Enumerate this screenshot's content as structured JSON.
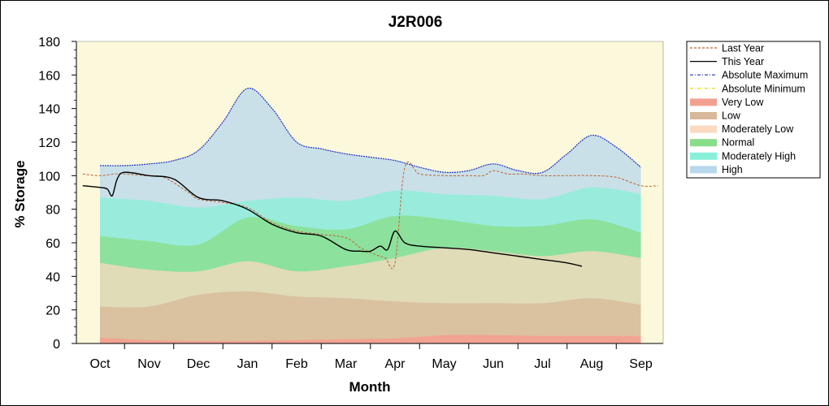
{
  "chart_data": {
    "type": "area",
    "title": "J2R006",
    "xlabel": "Month",
    "ylabel": "% Storage",
    "ylim": [
      0,
      180
    ],
    "yticks": [
      0,
      20,
      40,
      60,
      80,
      100,
      120,
      140,
      160,
      180
    ],
    "categories": [
      "Oct",
      "Nov",
      "Dec",
      "Jan",
      "Feb",
      "Mar",
      "Apr",
      "May",
      "Jun",
      "Jul",
      "Aug",
      "Sep"
    ],
    "grid": false,
    "legend_position": "right",
    "band_boundaries": [
      {
        "name": "Very Low upper",
        "points": [
          [
            0.0,
            3.5
          ],
          [
            1.0,
            2
          ],
          [
            2.0,
            1.5
          ],
          [
            3.0,
            1.5
          ],
          [
            4.0,
            2
          ],
          [
            5.0,
            2.5
          ],
          [
            6.0,
            3
          ],
          [
            7.0,
            5
          ],
          [
            8.0,
            5
          ],
          [
            9.0,
            4.5
          ],
          [
            10.0,
            4.5
          ],
          [
            11.0,
            4.5
          ]
        ]
      },
      {
        "name": "Low upper",
        "points": [
          [
            0.0,
            22
          ],
          [
            1.0,
            22
          ],
          [
            2.0,
            29
          ],
          [
            3.0,
            31
          ],
          [
            4.0,
            28
          ],
          [
            5.0,
            27
          ],
          [
            6.0,
            25
          ],
          [
            7.0,
            24
          ],
          [
            8.0,
            24
          ],
          [
            9.0,
            24
          ],
          [
            10.0,
            27
          ],
          [
            11.0,
            23
          ]
        ]
      },
      {
        "name": "Moderately Low upper",
        "points": [
          [
            0.0,
            48
          ],
          [
            1.0,
            44
          ],
          [
            2.0,
            43
          ],
          [
            3.0,
            49
          ],
          [
            4.0,
            43
          ],
          [
            5.0,
            46
          ],
          [
            6.0,
            51
          ],
          [
            7.0,
            57
          ],
          [
            8.0,
            55
          ],
          [
            9.0,
            52
          ],
          [
            10.0,
            55
          ],
          [
            11.0,
            51
          ]
        ]
      },
      {
        "name": "Normal upper",
        "points": [
          [
            0.0,
            64
          ],
          [
            1.0,
            61
          ],
          [
            2.0,
            59
          ],
          [
            3.0,
            75
          ],
          [
            4.0,
            70
          ],
          [
            5.0,
            68
          ],
          [
            6.0,
            76
          ],
          [
            7.0,
            74
          ],
          [
            8.0,
            70
          ],
          [
            9.0,
            70
          ],
          [
            10.0,
            74
          ],
          [
            11.0,
            66
          ]
        ]
      },
      {
        "name": "Moderately High upper",
        "points": [
          [
            0.0,
            87
          ],
          [
            1.0,
            85
          ],
          [
            2.0,
            81
          ],
          [
            3.0,
            85
          ],
          [
            4.0,
            87
          ],
          [
            5.0,
            85
          ],
          [
            6.0,
            91
          ],
          [
            7.0,
            89
          ],
          [
            8.0,
            88
          ],
          [
            9.0,
            86
          ],
          [
            10.0,
            93
          ],
          [
            11.0,
            89
          ]
        ]
      },
      {
        "name": "Absolute Maximum",
        "points": [
          [
            0.0,
            106
          ],
          [
            0.5,
            106
          ],
          [
            1.0,
            107
          ],
          [
            1.5,
            109
          ],
          [
            2.0,
            115
          ],
          [
            2.5,
            132
          ],
          [
            3.0,
            152
          ],
          [
            3.5,
            140
          ],
          [
            4.0,
            120
          ],
          [
            4.5,
            116
          ],
          [
            5.0,
            113
          ],
          [
            5.5,
            111
          ],
          [
            6.0,
            109
          ],
          [
            6.5,
            105
          ],
          [
            7.0,
            102
          ],
          [
            7.5,
            103
          ],
          [
            8.0,
            107
          ],
          [
            8.5,
            103
          ],
          [
            9.0,
            102
          ],
          [
            9.5,
            113
          ],
          [
            10.0,
            124
          ],
          [
            10.5,
            117
          ],
          [
            11.0,
            105
          ]
        ]
      }
    ],
    "series": [
      {
        "name": "Last Year",
        "x": [
          -0.35,
          0.0,
          0.3,
          0.5,
          0.9,
          1.3,
          1.8,
          2.0,
          2.5,
          3.0,
          3.5,
          4.0,
          4.5,
          5.0,
          5.3,
          5.6,
          5.8,
          6.0,
          6.2,
          6.5,
          7.0,
          7.5,
          7.8,
          8.0,
          8.3,
          8.6,
          9.0,
          9.5,
          10.0,
          10.5,
          11.0,
          11.35
        ],
        "y": [
          101,
          100,
          101,
          101,
          100,
          99,
          90,
          86,
          84,
          81,
          72,
          67,
          65,
          63,
          57,
          53,
          51,
          48,
          105,
          101,
          100,
          100,
          100,
          103,
          101,
          101,
          100,
          100,
          100,
          99,
          94,
          94
        ]
      },
      {
        "name": "This Year",
        "x": [
          -0.35,
          0.0,
          0.15,
          0.25,
          0.35,
          0.5,
          1.0,
          1.5,
          2.0,
          2.5,
          3.0,
          3.5,
          4.0,
          4.5,
          5.0,
          5.3,
          5.5,
          5.7,
          5.85,
          6.0,
          6.2,
          6.5,
          7.0,
          7.5,
          8.0,
          8.5,
          9.0,
          9.5,
          9.8
        ],
        "y": [
          94,
          93,
          92,
          88,
          98,
          102,
          100,
          98,
          87,
          85,
          80,
          71,
          66,
          64,
          56,
          55,
          55,
          58,
          56,
          67,
          60,
          58,
          57,
          56,
          54,
          52,
          50,
          48,
          46
        ]
      }
    ]
  },
  "legend": [
    {
      "label": "Last Year",
      "kind": "line",
      "color": "#c06030",
      "dash": "3,2"
    },
    {
      "label": "This Year",
      "kind": "line",
      "color": "#000000",
      "dash": ""
    },
    {
      "label": "Absolute Maximum",
      "kind": "line",
      "color": "#2030c0",
      "dash": "4,2,1,2"
    },
    {
      "label": "Absolute Minimum",
      "kind": "line",
      "color": "#e0d000",
      "dash": "4,2,1,2"
    },
    {
      "label": "Very Low",
      "kind": "band",
      "color": "#f4a090"
    },
    {
      "label": "Low",
      "kind": "band",
      "color": "#d8b898"
    },
    {
      "label": "Moderately Low",
      "kind": "band",
      "color": "#fbdac0"
    },
    {
      "label": "Normal",
      "kind": "band",
      "color": "#88dd88"
    },
    {
      "label": "Moderately High",
      "kind": "band",
      "color": "#88f0d8"
    },
    {
      "label": "High",
      "kind": "band",
      "color": "#b8d8ec"
    }
  ],
  "colors": {
    "plot_background": "#fbf8dc",
    "very_low": "#f4a090",
    "low": "#d8b898",
    "moderately_low": "#fbdac0",
    "normal": "#88dd88",
    "moderately_high": "#88f0d8",
    "high": "#b8d8ec",
    "absolute_maximum": "#2030c0",
    "last_year": "#c06030",
    "this_year": "#000000"
  }
}
